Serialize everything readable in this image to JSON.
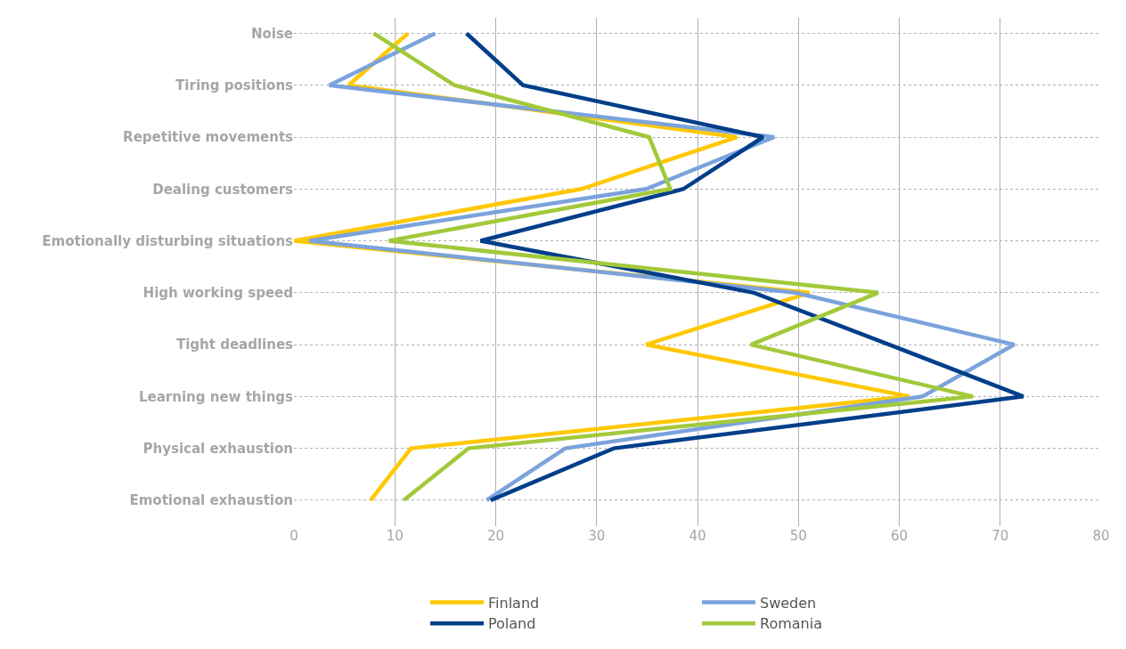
{
  "chart_data": {
    "type": "line",
    "categories": [
      "Noise",
      "Tiring positions",
      "Repetitive movements",
      "Dealing customers",
      "Emotionally disturbing situations",
      "High working speed",
      "Tight deadlines",
      "Learning new things",
      "Physical exhaustion",
      "Emotional exhaustion"
    ],
    "series": [
      {
        "name": "Finland",
        "color": "#ffc800",
        "values": [
          11.3,
          5.4,
          43.9,
          28.5,
          0,
          51.1,
          34.9,
          61,
          11.6,
          7.6
        ]
      },
      {
        "name": "Sweden",
        "color": "#7ba3dc",
        "values": [
          14,
          3.5,
          47.6,
          34.9,
          1.5,
          49.7,
          71.4,
          62.3,
          26.9,
          19.1
        ]
      },
      {
        "name": "Poland",
        "color": "#003e8a",
        "values": [
          17.1,
          22.7,
          46.5,
          38.6,
          18.5,
          45.6,
          59,
          72.3,
          31.7,
          19.5
        ]
      },
      {
        "name": "Romania",
        "color": "#a2c93a",
        "values": [
          7.9,
          15.9,
          35.2,
          37.3,
          9.4,
          57.9,
          45.3,
          67.3,
          17.3,
          10.9
        ]
      }
    ],
    "xlim": [
      0,
      80
    ],
    "xticks": [
      0,
      10,
      20,
      30,
      40,
      50,
      60,
      70,
      80
    ],
    "orientation": "horizontal",
    "grid": true,
    "legend": "bottom",
    "marker": "none",
    "line_style": "solid"
  }
}
